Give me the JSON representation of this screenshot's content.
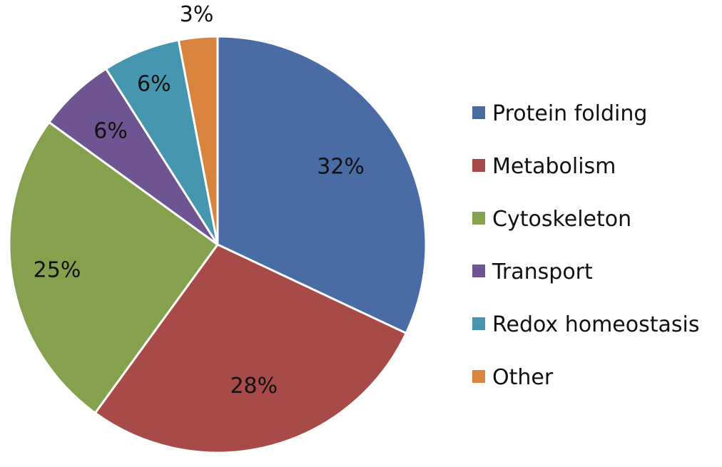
{
  "chart_data": {
    "type": "pie",
    "categories": [
      "Protein folding",
      "Metabolism",
      "Cytoskeleton",
      "Transport",
      "Redox homeostasis",
      "Other"
    ],
    "values": [
      32,
      28,
      25,
      6,
      6,
      3
    ],
    "labels": [
      "32%",
      "28%",
      "25%",
      "6%",
      "6%",
      "3%"
    ],
    "colors": [
      "#4A6CA5",
      "#A84A47",
      "#85A14E",
      "#6E5490",
      "#4596AE",
      "#D9843E"
    ],
    "legend_placement": "right",
    "start_angle": "12 o'clock",
    "direction": "clockwise"
  }
}
